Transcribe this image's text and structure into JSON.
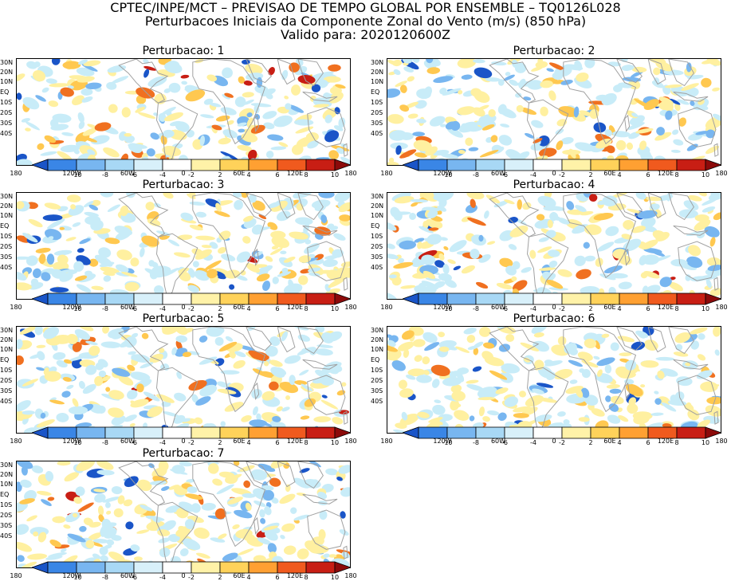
{
  "header": {
    "line1": "CPTEC/INPE/MCT – PREVISAO DE TEMPO GLOBAL POR ENSEMBLE – TQ0126L028",
    "line2": "Perturbacoes Iniciais da Componente Zonal do Vento (m/s) (850 hPa)",
    "line3": "Valido para: 2020120600Z"
  },
  "lat_labels": [
    "30N",
    "20N",
    "10N",
    "EQ",
    "10S",
    "20S",
    "30S",
    "40S"
  ],
  "lon_labels": [
    "180",
    "120W",
    "60W",
    "0",
    "60E",
    "120E",
    "180"
  ],
  "colorbar": {
    "labels": [
      "-10",
      "-8",
      "-6",
      "-4",
      "-2",
      "2",
      "4",
      "6",
      "8",
      "10"
    ],
    "colors": [
      "#1a55c8",
      "#3a86e6",
      "#78b6f0",
      "#a8d8f5",
      "#d8f0fa",
      "#ffffff",
      "#fff2a8",
      "#ffd25a",
      "#ffa032",
      "#f05a1e",
      "#c81e14",
      "#8c0a0a"
    ]
  },
  "map_colors": {
    "coast": "#a0a0a0",
    "neg": [
      "#1a55c8",
      "#78b6f0",
      "#c8ecf8"
    ],
    "pos": [
      "#fff0a0",
      "#ffc850",
      "#f07020",
      "#c81e14"
    ]
  },
  "panels": [
    {
      "title": "Perturbacao: 1"
    },
    {
      "title": "Perturbacao: 2"
    },
    {
      "title": "Perturbacao: 3"
    },
    {
      "title": "Perturbacao: 4"
    },
    {
      "title": "Perturbacao: 5"
    },
    {
      "title": "Perturbacao: 6"
    },
    {
      "title": "Perturbacao: 7"
    }
  ]
}
